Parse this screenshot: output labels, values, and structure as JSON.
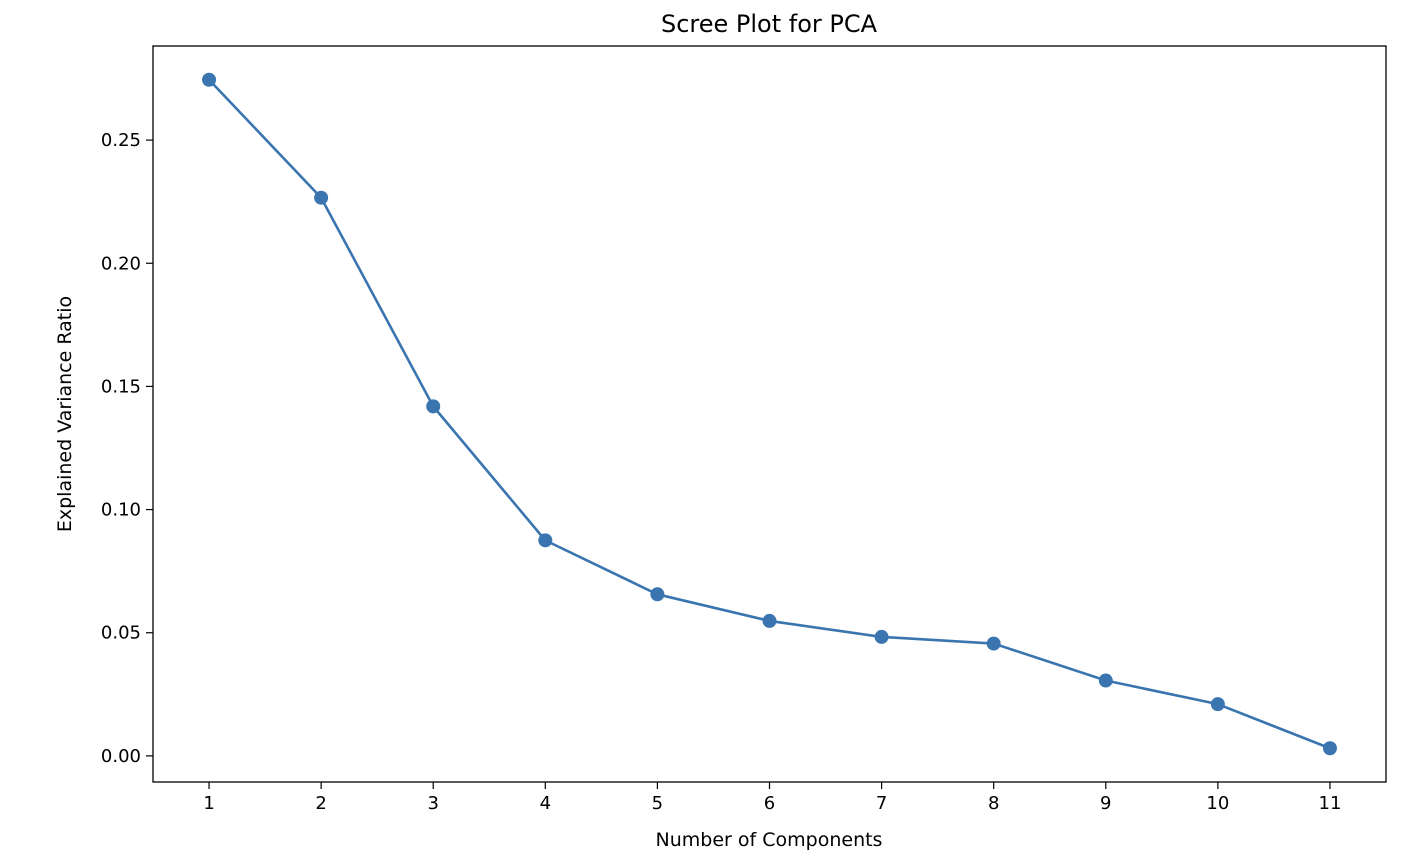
{
  "chart_data": {
    "type": "line",
    "title": "Scree Plot for PCA",
    "xlabel": "Number of Components",
    "ylabel": "Explained Variance Ratio",
    "x": [
      1,
      2,
      3,
      4,
      5,
      6,
      7,
      8,
      9,
      10,
      11
    ],
    "series": [
      {
        "values": [
          0.2745,
          0.2266,
          0.1419,
          0.0875,
          0.0656,
          0.0548,
          0.0483,
          0.0456,
          0.0306,
          0.021,
          0.0031
        ],
        "color": "#3a75b0",
        "marker": "circle"
      }
    ],
    "xlim": [
      0.5,
      11.5
    ],
    "ylim": [
      -0.0106,
      0.2882
    ],
    "xticks": [
      "1",
      "2",
      "3",
      "4",
      "5",
      "6",
      "7",
      "8",
      "9",
      "10",
      "11"
    ],
    "yticks": [
      "0.00",
      "0.05",
      "0.10",
      "0.15",
      "0.20",
      "0.25"
    ],
    "grid": false,
    "legend": "none"
  }
}
